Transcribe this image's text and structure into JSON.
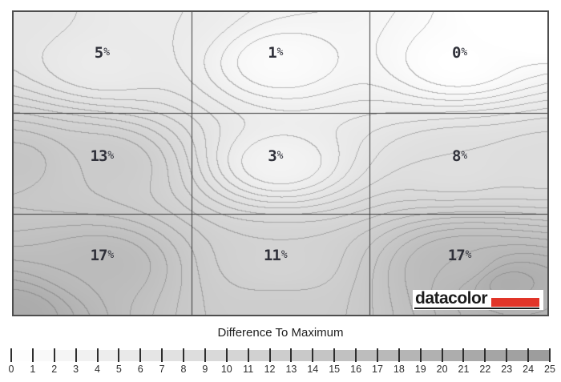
{
  "window": {
    "background": "#ffffff"
  },
  "plot": {
    "border_color": "#4e4e4e",
    "grid_rows": 3,
    "grid_cols": 3,
    "grid_line_color": "#3c3c3c",
    "label_color": "#30313a"
  },
  "logo": {
    "text": "datacolor",
    "text_color": "#1c1c1c",
    "bar_color": "#e13529",
    "background": "#ffffff",
    "underline_color": "#1c1c1c"
  },
  "legend": {
    "title": "Difference To Maximum",
    "min": 0,
    "max": 25,
    "tick_labels": [
      "0",
      "1",
      "2",
      "3",
      "4",
      "5",
      "6",
      "7",
      "8",
      "9",
      "10",
      "11",
      "12",
      "13",
      "14",
      "15",
      "16",
      "17",
      "18",
      "19",
      "20",
      "21",
      "22",
      "23",
      "24",
      "25"
    ],
    "tick_color": "#2e2e2e",
    "number_color": "#2d2d2d"
  },
  "chart_data": {
    "type": "heatmap",
    "subtype": "filled-contour-uniformity-map",
    "title": "Difference To Maximum",
    "units": "percent",
    "grid": {
      "rows": 3,
      "cols": 3
    },
    "cell_values": [
      [
        5,
        1,
        0
      ],
      [
        13,
        3,
        8
      ],
      [
        17,
        11,
        17
      ]
    ],
    "cell_labels": [
      [
        "5%",
        "1%",
        "0%"
      ],
      [
        "13%",
        "3%",
        "8%"
      ],
      [
        "17%",
        "11%",
        "17%"
      ]
    ],
    "contour_interval": 1,
    "scale_range": [
      0,
      25
    ],
    "color_scale": {
      "min_color": "#fdfdfd",
      "max_color": "#9d9d9d"
    },
    "label_positions": {
      "u": [
        0.165,
        0.49,
        0.835
      ],
      "v": [
        0.135,
        0.475,
        0.805
      ]
    },
    "field_control_points": [
      {
        "u": 0.167,
        "v": 0.167,
        "value": 5
      },
      {
        "u": 0.5,
        "v": 0.167,
        "value": 1
      },
      {
        "u": 0.833,
        "v": 0.167,
        "value": 0
      },
      {
        "u": 0.167,
        "v": 0.5,
        "value": 13
      },
      {
        "u": 0.5,
        "v": 0.5,
        "value": 3
      },
      {
        "u": 0.833,
        "v": 0.5,
        "value": 8
      },
      {
        "u": 0.167,
        "v": 0.833,
        "value": 17
      },
      {
        "u": 0.5,
        "v": 0.833,
        "value": 11
      },
      {
        "u": 0.833,
        "v": 0.833,
        "value": 17
      },
      {
        "u": 0.0,
        "v": 0.0,
        "value": 6.5
      },
      {
        "u": 0.28,
        "v": 0.0,
        "value": 5
      },
      {
        "u": 1.0,
        "v": 0.0,
        "value": -2.5
      },
      {
        "u": 0.0,
        "v": 0.5,
        "value": 14.5
      },
      {
        "u": 1.0,
        "v": 0.5,
        "value": 8.5
      },
      {
        "u": 0.0,
        "v": 1.0,
        "value": 21
      },
      {
        "u": 0.5,
        "v": 1.0,
        "value": 12.5
      },
      {
        "u": 0.93,
        "v": 0.9,
        "value": 20.5
      },
      {
        "u": 1.0,
        "v": 1.0,
        "value": 19
      }
    ]
  }
}
